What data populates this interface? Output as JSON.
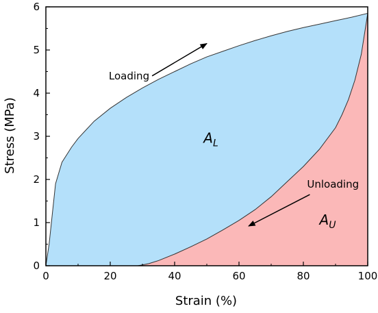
{
  "chart_data": {
    "type": "area",
    "xlabel": "Strain (%)",
    "ylabel": "Stress (MPa)",
    "xlim": [
      0,
      100
    ],
    "ylim": [
      0,
      6
    ],
    "xticks": [
      "0",
      "20",
      "40",
      "60",
      "80",
      "100"
    ],
    "yticks": [
      "0",
      "1",
      "2",
      "3",
      "4",
      "5",
      "6"
    ],
    "grid": false,
    "series": [
      {
        "name": "Loading",
        "color": "#b4e0fa",
        "x": [
          0,
          1,
          2,
          3,
          5,
          8,
          10,
          15,
          20,
          25,
          30,
          35,
          40,
          45,
          50,
          55,
          60,
          65,
          70,
          75,
          80,
          85,
          90,
          95,
          100
        ],
        "y": [
          0,
          0.5,
          1.2,
          1.9,
          2.4,
          2.75,
          2.95,
          3.35,
          3.65,
          3.9,
          4.12,
          4.32,
          4.5,
          4.68,
          4.84,
          4.97,
          5.1,
          5.22,
          5.33,
          5.43,
          5.52,
          5.6,
          5.68,
          5.76,
          5.85
        ]
      },
      {
        "name": "Unloading",
        "color": "#fbb8b8",
        "x": [
          100,
          98,
          96,
          94,
          92,
          90,
          85,
          80,
          75,
          70,
          65,
          60,
          55,
          50,
          45,
          40,
          35,
          32,
          30,
          28.5
        ],
        "y": [
          5.85,
          4.9,
          4.3,
          3.85,
          3.5,
          3.2,
          2.7,
          2.3,
          1.95,
          1.6,
          1.3,
          1.05,
          0.83,
          0.62,
          0.44,
          0.27,
          0.12,
          0.05,
          0.02,
          0
        ]
      }
    ],
    "annotations": [
      {
        "text": "Loading",
        "arrow_from": [
          33,
          4.4
        ],
        "arrow_to": [
          50,
          5.15
        ]
      },
      {
        "text": "Unloading",
        "arrow_from": [
          82,
          1.65
        ],
        "arrow_to": [
          63,
          0.92
        ]
      }
    ],
    "area_labels": [
      {
        "symbol": "A",
        "subscript": "L",
        "x": 49,
        "y": 2.85
      },
      {
        "symbol": "A",
        "subscript": "U",
        "x": 85,
        "y": 0.95
      }
    ]
  }
}
